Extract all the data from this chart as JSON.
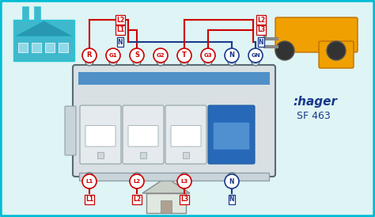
{
  "bg_color": "#dff4f4",
  "border_color": "#00bcd4",
  "red": "#cc0000",
  "blue": "#1a3a8c",
  "white": "#ffffff",
  "dark_gray": "#5a6a72",
  "mid_gray": "#8fa0a8",
  "light_gray": "#c8d4d8",
  "breaker_gray": "#b8c8d0",
  "breaker_face": "#d8e0e4",
  "hager_text": ":hager",
  "model_text": "SF 463",
  "hager_color": "#1a3a8c",
  "model_color": "#1a3a8c",
  "top_labels": [
    "R",
    "G1",
    "S",
    "G2",
    "T",
    "G3",
    "N",
    "GN"
  ],
  "top_colors": [
    "red",
    "red",
    "red",
    "red",
    "red",
    "red",
    "blue",
    "blue"
  ],
  "bot_labels": [
    "L1",
    "L2",
    "L3",
    "N"
  ],
  "bot_colors": [
    "red",
    "red",
    "red",
    "blue"
  ],
  "left_labels": [
    "L2",
    "L1",
    "N"
  ],
  "left_colors": [
    "red",
    "red",
    "blue"
  ],
  "right_labels": [
    "L2",
    "L3",
    "N"
  ],
  "right_colors": [
    "red",
    "red",
    "blue"
  ]
}
